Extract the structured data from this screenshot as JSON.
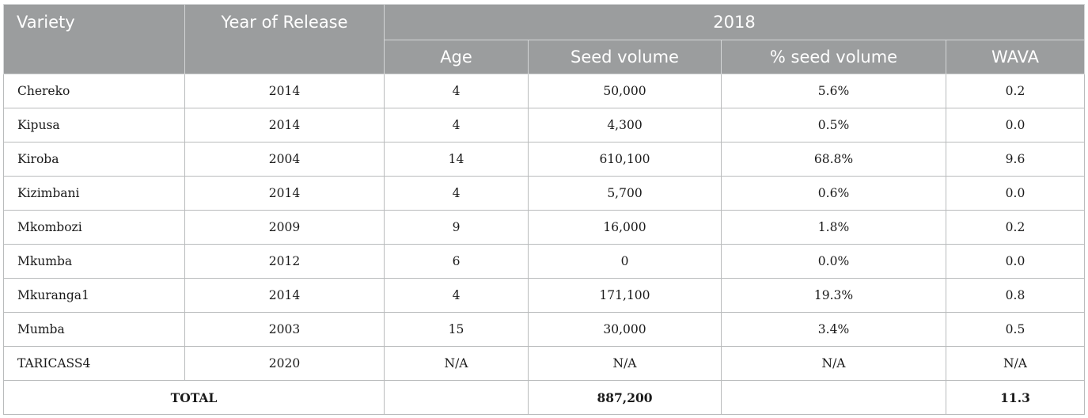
{
  "header": {
    "variety": "Variety",
    "year_of_release": "Year of Release",
    "year_group": "2018",
    "age": "Age",
    "seed_volume": "Seed volume",
    "pct_seed_volume": "% seed volume",
    "wava": "WAVA"
  },
  "rows": [
    {
      "variety": "Chereko",
      "year": "2014",
      "age": "4",
      "seed_volume": "50,000",
      "pct": "5.6%",
      "wava": "0.2"
    },
    {
      "variety": "Kipusa",
      "year": "2014",
      "age": "4",
      "seed_volume": "4,300",
      "pct": "0.5%",
      "wava": "0.0"
    },
    {
      "variety": "Kiroba",
      "year": "2004",
      "age": "14",
      "seed_volume": "610,100",
      "pct": "68.8%",
      "wava": "9.6"
    },
    {
      "variety": "Kizimbani",
      "year": "2014",
      "age": "4",
      "seed_volume": "5,700",
      "pct": "0.6%",
      "wava": "0.0"
    },
    {
      "variety": "Mkombozi",
      "year": "2009",
      "age": "9",
      "seed_volume": "16,000",
      "pct": "1.8%",
      "wava": "0.2"
    },
    {
      "variety": "Mkumba",
      "year": "2012",
      "age": "6",
      "seed_volume": "0",
      "pct": "0.0%",
      "wava": "0.0"
    },
    {
      "variety": "Mkuranga1",
      "year": "2014",
      "age": "4",
      "seed_volume": "171,100",
      "pct": "19.3%",
      "wava": "0.8"
    },
    {
      "variety": "Mumba",
      "year": "2003",
      "age": "15",
      "seed_volume": "30,000",
      "pct": "3.4%",
      "wava": "0.5"
    },
    {
      "variety": "TARICASS4",
      "year": "2020",
      "age": "N/A",
      "seed_volume": "N/A",
      "pct": "N/A",
      "wava": "N/A"
    }
  ],
  "total": {
    "label": "TOTAL",
    "age": "",
    "seed_volume": "887,200",
    "pct": "",
    "wava": "11.3"
  }
}
